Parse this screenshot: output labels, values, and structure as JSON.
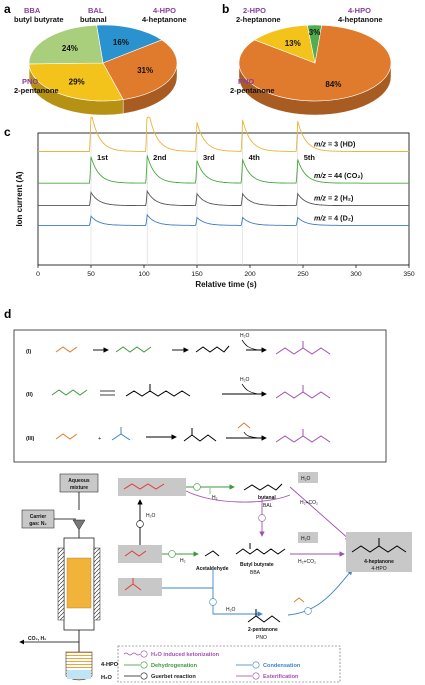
{
  "panels": {
    "a": "a",
    "b": "b",
    "c": "c",
    "d": "d"
  },
  "pie_a": {
    "labels": {
      "bba_code": "BBA",
      "bba_name": "butyl butyrate",
      "bal_code": "BAL",
      "bal_name": "butanal",
      "hpo4_code": "4-HPO",
      "hpo4_name": "4-heptanone",
      "pno_code": "PNO",
      "pno_name": "2-pentanone"
    },
    "slices": [
      {
        "code": "BAL",
        "value": 16,
        "label": "16%",
        "color": "#2a93cf"
      },
      {
        "code": "4-HPO",
        "value": 31,
        "label": "31%",
        "color": "#e07a2c"
      },
      {
        "code": "PNO",
        "value": 29,
        "label": "29%",
        "color": "#f3c21b"
      },
      {
        "code": "BBA",
        "value": 24,
        "label": "24%",
        "color": "#a9cf7d"
      }
    ]
  },
  "pie_b": {
    "labels": {
      "hpo2_code": "2-HPO",
      "hpo2_name": "2-heptanone",
      "hpo4_code": "4-HPO",
      "hpo4_name": "4-heptanone",
      "pno_code": "PNO",
      "pno_name": "2-pentanone"
    },
    "slices": [
      {
        "code": "4-HPO",
        "value": 84,
        "label": "84%",
        "color": "#e07a2c"
      },
      {
        "code": "PNO",
        "value": 13,
        "label": "13%",
        "color": "#f3c21b"
      },
      {
        "code": "2-HPO",
        "value": 3,
        "label": "3%",
        "color": "#4fae4f"
      }
    ]
  },
  "chart_data": {
    "type": "line",
    "xlabel": "Relative time (s)",
    "ylabel": "Ion current (A)",
    "xlim": [
      0,
      350
    ],
    "xticks": [
      0,
      50,
      100,
      150,
      200,
      250,
      300,
      350
    ],
    "pulses": [
      {
        "label": "1st",
        "t": 50
      },
      {
        "label": "2nd",
        "t": 103
      },
      {
        "label": "3rd",
        "t": 150
      },
      {
        "label": "4th",
        "t": 193
      },
      {
        "label": "5th",
        "t": 245
      }
    ],
    "series": [
      {
        "name": "m/z = 3 (HD)",
        "prefix": "m/z",
        "rest": " = 3 (HD)",
        "color": "#e9b43a",
        "base": 0.86,
        "amp": [
          0.3,
          0.36,
          0.22,
          0.24,
          0.23
        ]
      },
      {
        "name": "m/z = 44 (CO2)",
        "prefix": "m/z",
        "rest": " = 44 (CO₂)",
        "color": "#4aa83f",
        "base": 0.62,
        "amp": [
          0.2,
          0.21,
          0.17,
          0.18,
          0.18
        ]
      },
      {
        "name": "m/z = 2 (H2)",
        "prefix": "m/z",
        "rest": " = 2 (H₂)",
        "color": "#555555",
        "base": 0.45,
        "amp": [
          0.1,
          0.11,
          0.09,
          0.09,
          0.09
        ]
      },
      {
        "name": "m/z = 4 (D2)",
        "prefix": "m/z",
        "rest": " = 4 (D₂)",
        "color": "#3f7bc4",
        "base": 0.3,
        "amp": [
          0.07,
          0.08,
          0.06,
          0.06,
          0.06
        ]
      }
    ]
  },
  "scheme_box": {
    "row_labels": [
      "(I)",
      "(II)",
      "(III)"
    ],
    "h2o": "H₂O",
    "plus": "+"
  },
  "reactor": {
    "aqueous": "Aqueous",
    "mixture": "mixture",
    "carrier": "Carrier",
    "gas": "gas: N₂",
    "outlet": "CO₂, H₂",
    "product": "4-HPO",
    "water": "H₂O"
  },
  "network": {
    "butanal": "butanal",
    "bal": "BAL",
    "acetaldehyde": "Acetaldehyde",
    "butyl_butyrate": "Butyl butyrate",
    "bba": "BBA",
    "pentanone": "2-pentanone",
    "pno": "PNO",
    "heptanone": "4-heptanone",
    "hpo": "4-HPO",
    "h2": "H₂",
    "h2o": "H₂O",
    "h2co2": "H₂+CO₂"
  },
  "legend": {
    "k": "H₂O induced ketonization",
    "d": "Dehydrogenation",
    "g": "Guerbet reaction",
    "c": "Condensation",
    "e": "Esterification",
    "colors": {
      "k": "#a24fb2",
      "d": "#3d9a3d",
      "g": "#222222",
      "c": "#3c84c8",
      "e": "#a24fb2"
    }
  }
}
